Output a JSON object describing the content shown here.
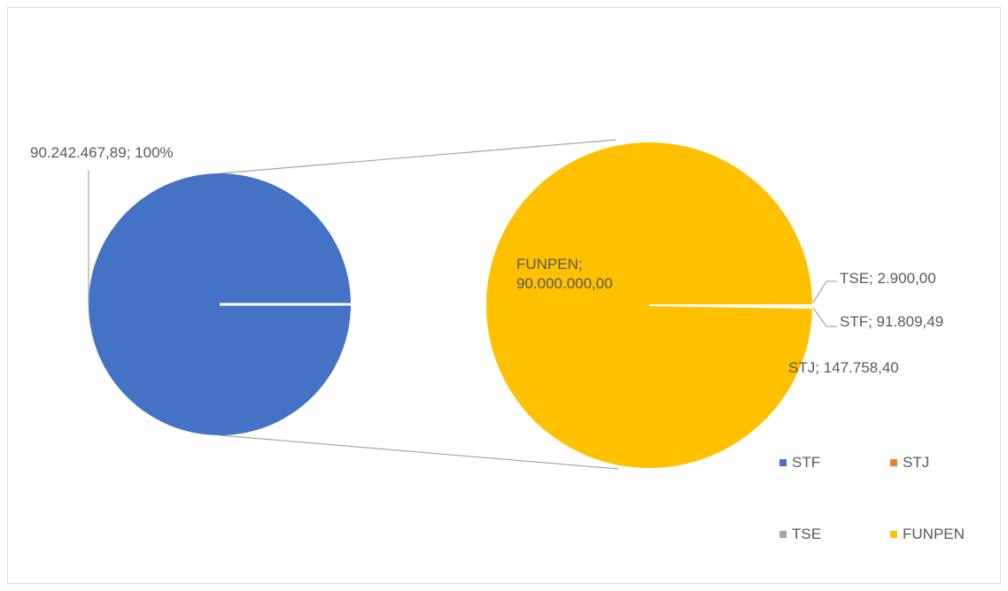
{
  "chart_data": {
    "type": "pie",
    "primary_values": [
      90242467.89
    ],
    "primary_value_labels": [
      "90.242.467,89; 100%"
    ],
    "primary_color": "#4472c4",
    "categories": [
      "STF",
      "STJ",
      "TSE",
      "FUNPEN"
    ],
    "values": [
      91809.49,
      147758.4,
      2900,
      90000000
    ],
    "value_labels": [
      "STF; 91.809,49",
      "STJ; 147.758,40",
      "TSE; 2.900,00",
      "FUNPEN; 90.000.000,00"
    ],
    "colors": [
      "#4472c4",
      "#ed7d31",
      "#a5a5a5",
      "#ffc000"
    ],
    "legend": "bottom-right"
  }
}
